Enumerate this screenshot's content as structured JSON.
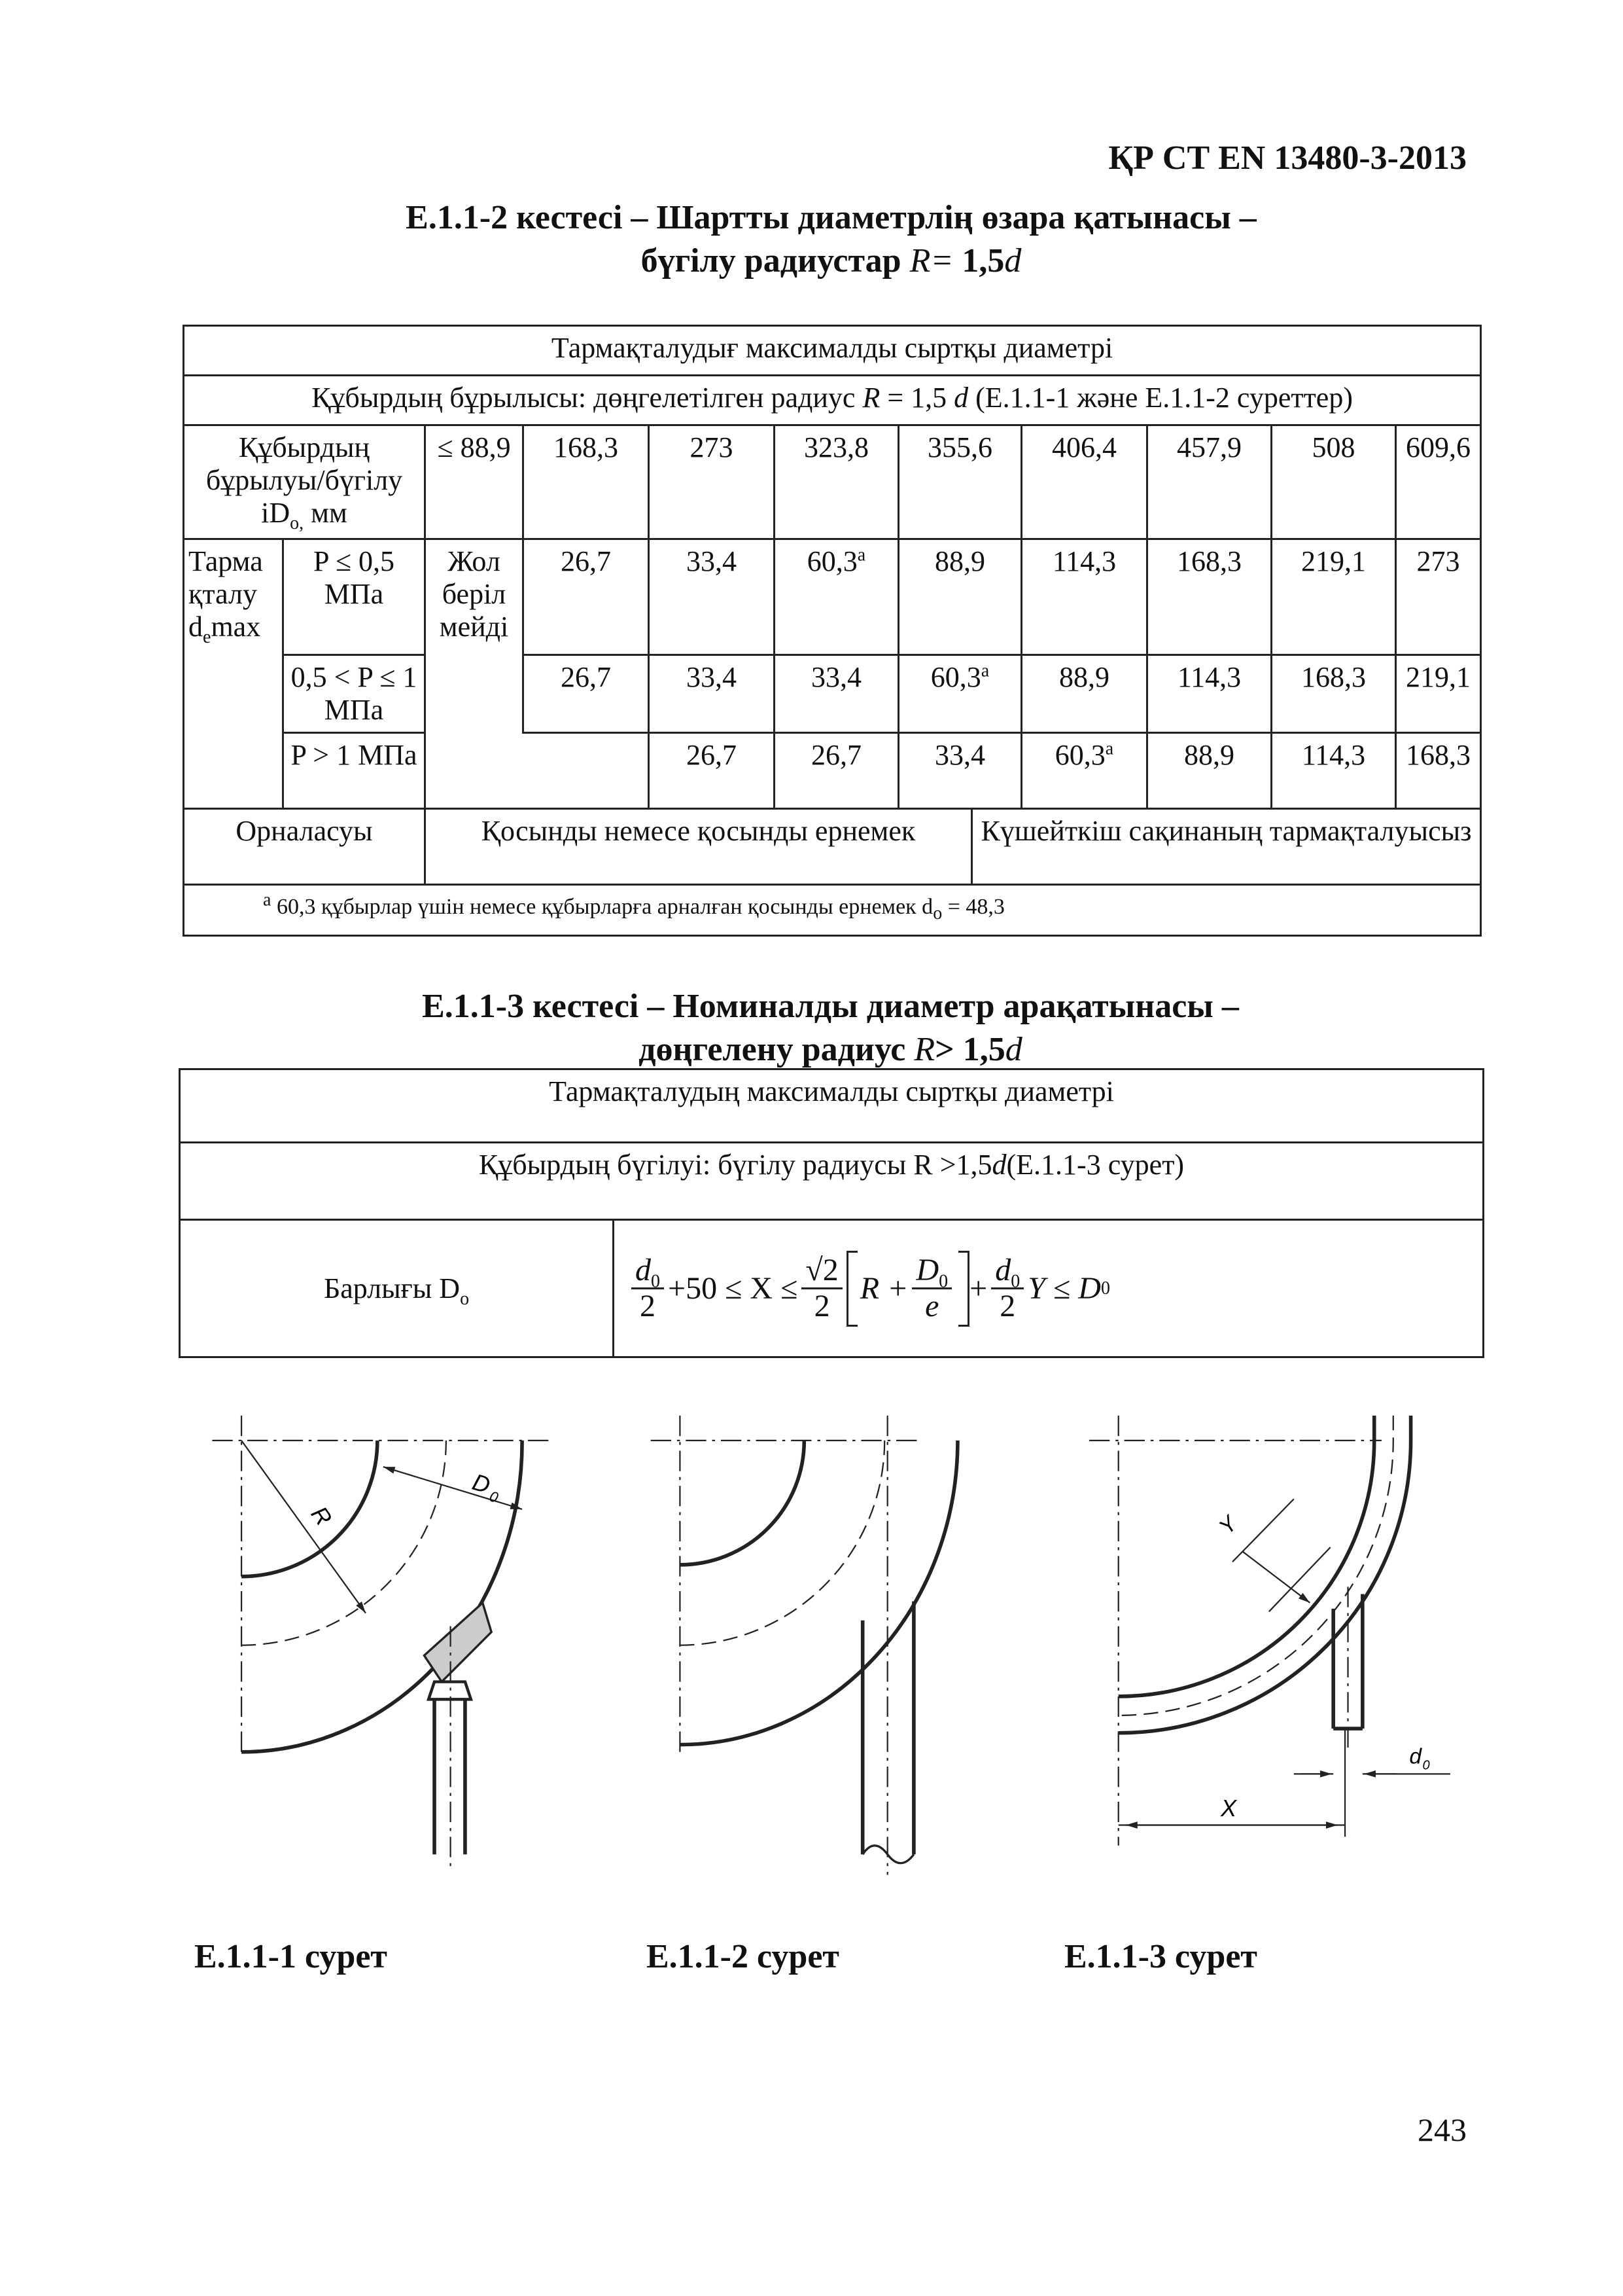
{
  "header": {
    "standard": "ҚР СТ EN 13480-3-2013"
  },
  "table1": {
    "title": {
      "line1": "Е.1.1-2 кестесі – Шартты диаметрлің өзара қатынасы –",
      "line2": "бүгілу радиустар",
      "symbol": "R",
      "equals": "=",
      "value": "1,5",
      "variable": "d"
    },
    "caption": "Тармақталудығ максималды сыртқы диаметрі",
    "bend": {
      "text": "Құбырдың бұрылысы: дөңгелетілген радиус",
      "symbol": "R",
      "equals": "= 1,5",
      "variable": "d",
      "reference": "(Е.1.1-1 және Е.1.1-2 суреттер)"
    },
    "header": {
      "label": "Құбырдың бұрылуы/бүгілу iD",
      "label_sub": "o,",
      "label_unit": "мм",
      "values": [
        "≤ 88,9",
        "168,3",
        "273",
        "323,8",
        "355,6",
        "406,4",
        "457,9",
        "508",
        "609,6"
      ]
    },
    "group": {
      "label": "Тарма қталу d",
      "label_sub": "e",
      "label_end": "max"
    },
    "not_allowed": "Жол беріл мейді",
    "rows": [
      {
        "pressure": "P ≤ 0,5 МПа",
        "values": [
          "26,7",
          "33,4",
          "60,3",
          "88,9",
          "114,3",
          "168,3",
          "219,1",
          "273"
        ],
        "notes": {
          "2": "a"
        }
      },
      {
        "pressure": "0,5 < P ≤ 1 МПа",
        "values": [
          "26,7",
          "33,4",
          "33,4",
          "60,3",
          "88,9",
          "114,3",
          "168,3",
          "219,1"
        ],
        "notes": {
          "3": "a"
        }
      },
      {
        "pressure": "P > 1 МПа",
        "values": [
          "26,7",
          "26,7",
          "33,4",
          "60,3",
          "88,9",
          "114,3",
          "168,3"
        ],
        "notes": {
          "3": "a"
        }
      }
    ],
    "location": {
      "label": "Орналасуы",
      "weld": "Қосынды немесе қосынды ернемек",
      "ring": "Күшейткіш сақинаның тармақталуысыз"
    },
    "footnote": {
      "mark": "a",
      "text": "60,3 құбырлар үшін немесе құбырларға арналған қосынды ернемек d",
      "sub": "o",
      "end": "= 48,3"
    }
  },
  "table2": {
    "title": {
      "line1": "Е.1.1-3 кестесі – Номиналды диаметр арақатынасы –",
      "line2": "дөңгелену радиус",
      "symbol": "R",
      "relation": "> 1,5",
      "variable": "d"
    },
    "caption": "Тармақталудың максималды сыртқы диаметрі",
    "bend": {
      "text": "Құбырдың бүгілуі: бүгілу радиусы R >1,5",
      "variable": "d",
      "reference": "(Е.1.1-3 сурет)"
    },
    "all": {
      "label": "Барлығы D",
      "sub": "o"
    },
    "formula": {
      "a_num": "d",
      "a_sub": "0",
      "a_den": "2",
      "mid": "+50 ≤ X ≤",
      "b_num": "√2",
      "b_den": "2",
      "c_left": "R +",
      "c_num": "D",
      "c_sub": "0",
      "c_den": "e",
      "plus": "+",
      "d_num": "d",
      "d_sub": "0",
      "d_den": "2",
      "tail": "Y ≤ D",
      "tail_sub": "0"
    }
  },
  "figures": [
    {
      "caption": "Е.1.1-1 сурет",
      "labels": {
        "radius": "R",
        "diameter": "D",
        "diameter_sub": "0"
      }
    },
    {
      "caption": "Е.1.1-2 сурет"
    },
    {
      "caption": "Е.1.1-3 сурет",
      "labels": {
        "offset": "Y",
        "distance": "X",
        "diameter": "d",
        "diameter_sub": "0"
      }
    }
  ],
  "page_number": "243"
}
